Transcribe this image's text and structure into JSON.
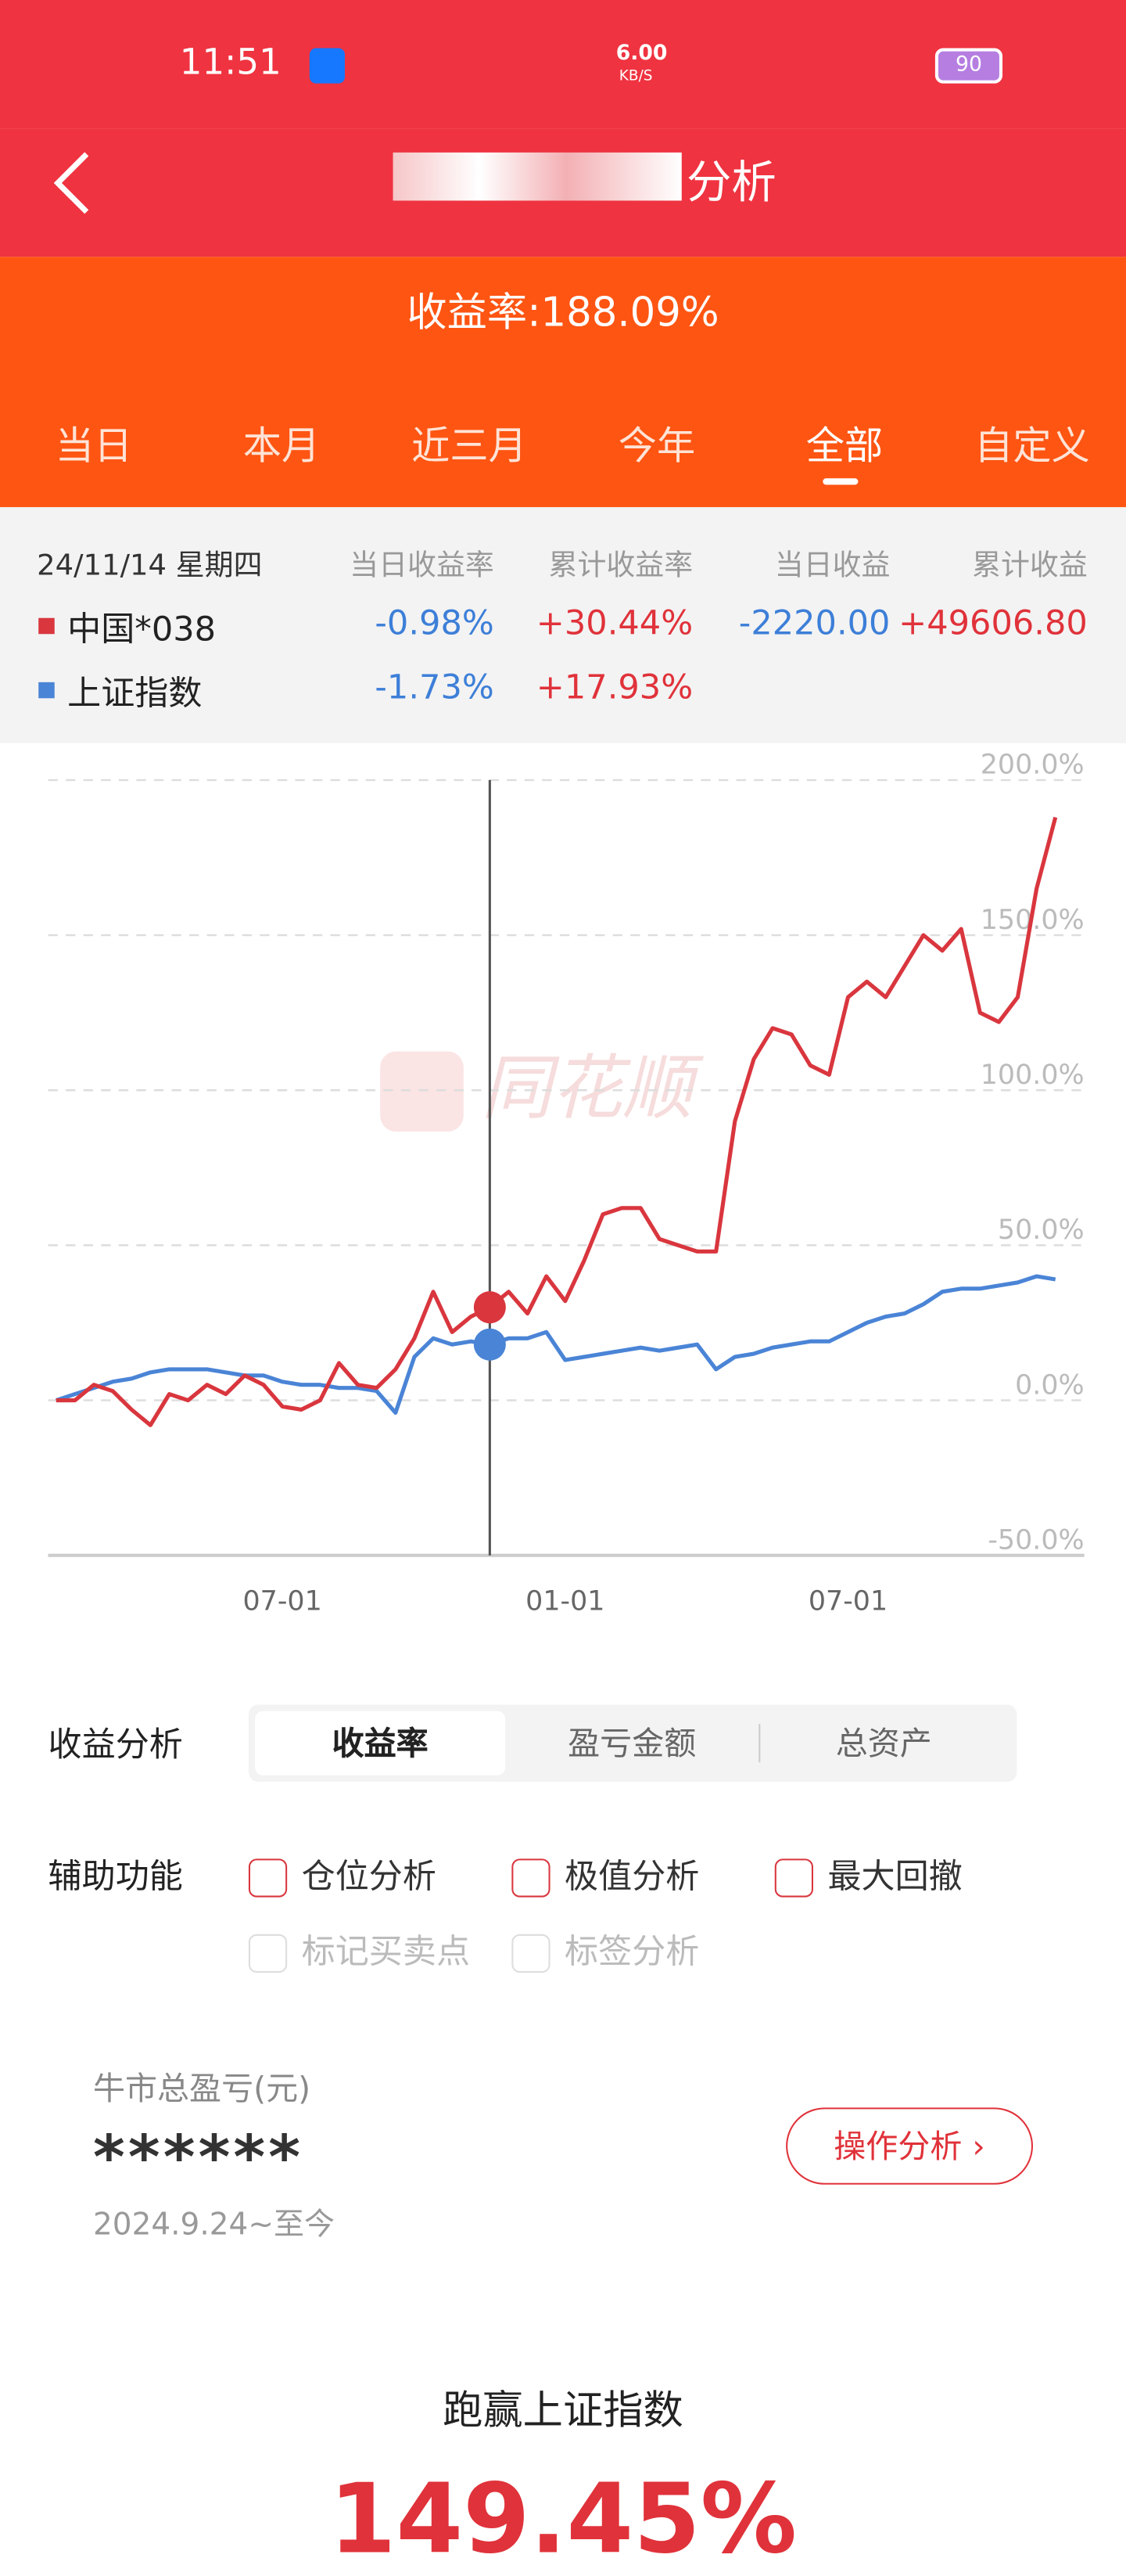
{
  "status_bar": {
    "time": "11:51",
    "net_speed": "6.00",
    "net_unit": "KB/S",
    "battery": "90"
  },
  "header": {
    "title": "分析",
    "subtitle": "收益率:188.09%"
  },
  "tabs": [
    "当日",
    "本月",
    "近三月",
    "今年",
    "全部",
    "自定义"
  ],
  "summary": {
    "date": "24/11/14 星期四",
    "columns": [
      "当日收益率",
      "累计收益率",
      "当日收益",
      "累计收益"
    ],
    "rows": [
      [
        "-0.98%",
        "+30.44%",
        "-2220.00",
        "+49606.80"
      ],
      [
        "-1.73%",
        "+17.93%"
      ]
    ]
  },
  "chart_data": {
    "type": "line",
    "watermark": "同花顺",
    "categories": [
      null,
      null,
      null,
      null,
      null,
      null,
      null,
      null,
      null,
      null,
      null,
      null,
      "07-01",
      null,
      null,
      null,
      null,
      null,
      null,
      null,
      null,
      null,
      null,
      null,
      null,
      null,
      null,
      "01-01",
      null,
      null,
      null,
      null,
      null,
      null,
      null,
      null,
      null,
      null,
      null,
      null,
      null,
      null,
      "07-01",
      null,
      null,
      null,
      null,
      null,
      null,
      null,
      null,
      null,
      null,
      null
    ],
    "series": [
      {
        "name": "中国*038",
        "color": "#d9363e",
        "values": [
          0,
          0,
          5,
          3,
          -3,
          -8,
          2,
          0,
          5,
          2,
          8,
          5,
          -2,
          -3,
          0,
          12,
          5,
          4,
          10,
          20,
          35,
          22,
          27,
          30,
          35,
          28,
          40,
          32,
          45,
          60,
          62,
          62,
          52,
          50,
          48,
          48,
          90,
          110,
          120,
          118,
          108,
          105,
          130,
          135,
          130,
          140,
          150,
          145,
          152,
          125,
          122,
          130,
          165,
          188
        ]
      },
      {
        "name": "上证指数",
        "color": "#4a84d6",
        "values": [
          0,
          2,
          4,
          6,
          7,
          9,
          10,
          10,
          10,
          9,
          8,
          8,
          6,
          5,
          5,
          4,
          4,
          3,
          -4,
          14,
          20,
          18,
          19,
          18,
          20,
          20,
          22,
          13,
          14,
          15,
          16,
          17,
          16,
          17,
          18,
          10,
          14,
          15,
          17,
          18,
          19,
          19,
          22,
          25,
          27,
          28,
          31,
          35,
          36,
          36,
          37,
          38,
          40,
          39
        ]
      }
    ],
    "ylim": [
      -50,
      200
    ],
    "yticks": [
      {
        "value": -50,
        "label": "-50.0%"
      },
      {
        "value": 0,
        "label": "0.0%"
      },
      {
        "value": 50,
        "label": "50.0%"
      },
      {
        "value": 100,
        "label": "100.0%"
      },
      {
        "value": 150,
        "label": "150.0%"
      },
      {
        "value": 200,
        "label": "200.0%"
      }
    ],
    "grid": true
  },
  "analysis": {
    "label": "收益分析",
    "options": [
      "收益率",
      "盈亏金额",
      "总资产"
    ]
  },
  "aux": {
    "label": "辅助功能",
    "options": [
      "仓位分析",
      "极值分析",
      "最大回撤",
      "标记买卖点",
      "标签分析"
    ]
  },
  "card": {
    "label": "牛市总盈亏(元)",
    "value": "******",
    "period": "2024.9.24~至今",
    "button": "操作分析"
  },
  "outperform": {
    "label": "跑赢上证指数",
    "value": "149.45%"
  }
}
